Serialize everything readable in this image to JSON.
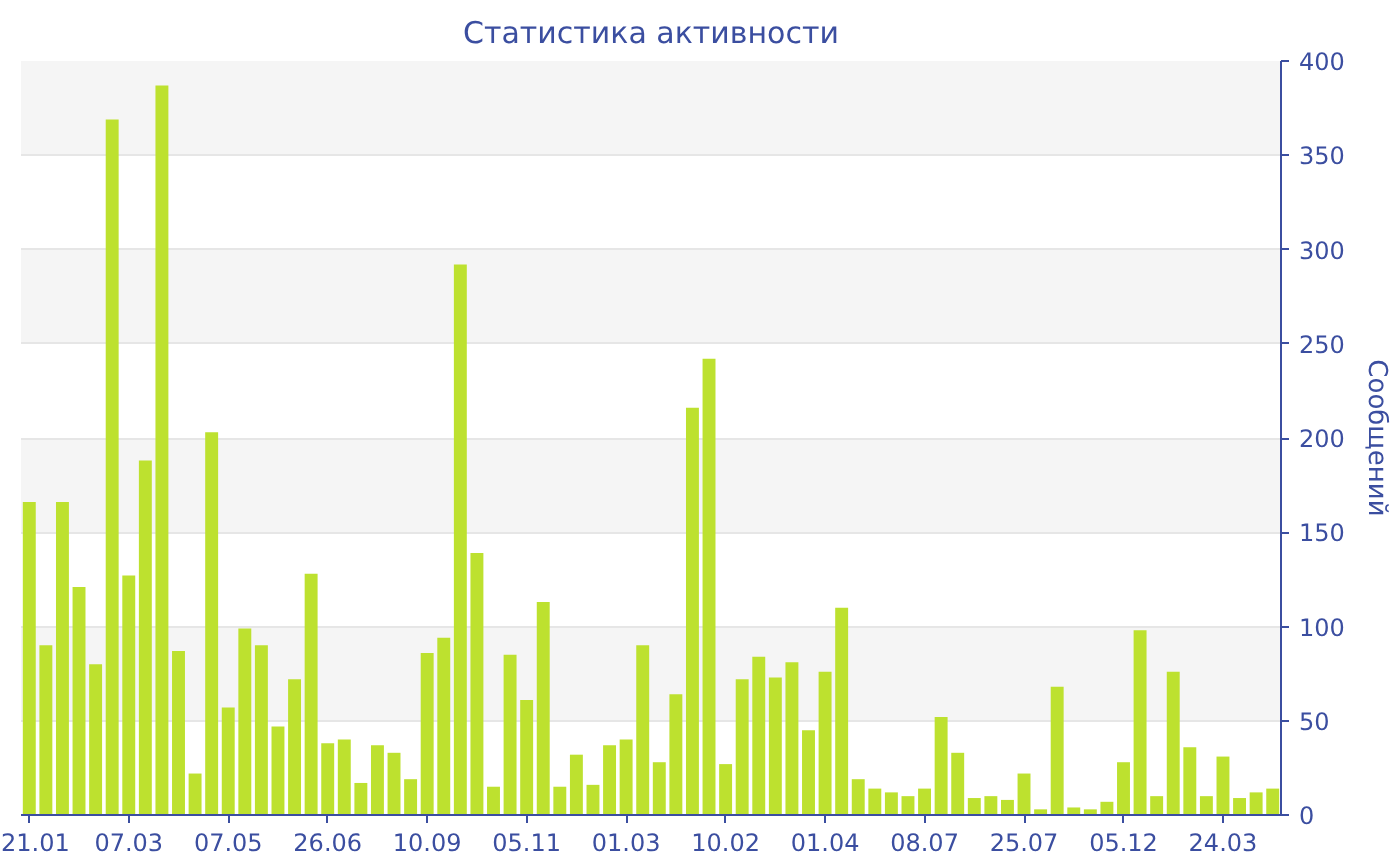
{
  "chart_data": {
    "type": "bar",
    "title": "Статистика активности",
    "ylabel": "Сообщений",
    "categories": [
      "21.01",
      null,
      null,
      null,
      null,
      null,
      "07.03",
      null,
      null,
      null,
      null,
      null,
      "07.05",
      null,
      null,
      null,
      null,
      null,
      "26.06",
      null,
      null,
      null,
      null,
      null,
      "10.09",
      null,
      null,
      null,
      null,
      null,
      "05.11",
      null,
      null,
      null,
      null,
      null,
      "01.03",
      null,
      null,
      null,
      null,
      null,
      "10.02",
      null,
      null,
      null,
      null,
      null,
      "01.04",
      null,
      null,
      null,
      null,
      null,
      "08.07",
      null,
      null,
      null,
      null,
      null,
      "25.07",
      null,
      null,
      null,
      null,
      null,
      "05.12",
      null,
      null,
      null,
      null,
      null,
      "24.03",
      null,
      null,
      null
    ],
    "values": [
      166,
      90,
      166,
      121,
      80,
      369,
      127,
      188,
      387,
      87,
      22,
      203,
      57,
      99,
      90,
      47,
      72,
      128,
      38,
      40,
      17,
      37,
      33,
      19,
      86,
      94,
      292,
      139,
      15,
      85,
      61,
      113,
      15,
      32,
      16,
      37,
      40,
      90,
      28,
      64,
      216,
      242,
      27,
      72,
      84,
      73,
      81,
      45,
      76,
      110,
      19,
      14,
      12,
      10,
      14,
      52,
      33,
      9,
      10,
      8,
      22,
      3,
      68,
      4,
      3,
      7,
      28,
      98,
      10,
      76,
      36,
      10,
      31,
      9,
      12,
      14
    ],
    "color": "#bde12f",
    "ylim": [
      0,
      400
    ],
    "yticks": [
      0,
      50,
      100,
      150,
      200,
      250,
      300,
      350,
      400
    ],
    "grid": "y"
  }
}
